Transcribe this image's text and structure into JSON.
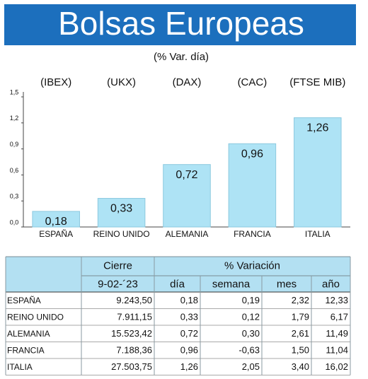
{
  "chart_data": {
    "type": "bar",
    "title": "Bolsas Europeas",
    "subtitle": "(% Var. día)",
    "tickers": [
      "(IBEX)",
      "(UKX)",
      "(DAX)",
      "(CAC)",
      "(FTSE MIB)"
    ],
    "categories": [
      "ESPAÑA",
      "REINO UNIDO",
      "ALEMANIA",
      "FRANCIA",
      "ITALIA"
    ],
    "values": [
      0.18,
      0.33,
      0.72,
      0.96,
      1.26
    ],
    "value_labels": [
      "0,18",
      "0,33",
      "0,72",
      "0,96",
      "1,26"
    ],
    "color": "#aee3f5",
    "ylim": [
      0,
      1.5
    ],
    "yticks": [
      {
        "value": 0,
        "label": "0,0"
      },
      {
        "value": 0.3,
        "label": "0,3"
      },
      {
        "value": 0.6,
        "label": "0,6"
      },
      {
        "value": 0.9,
        "label": "0,9"
      },
      {
        "value": 1.2,
        "label": "1,2"
      },
      {
        "value": 1.5,
        "label": "1,5"
      }
    ],
    "grid": false
  },
  "table": {
    "header": [
      "Cierre",
      "% Variación"
    ],
    "subheader": [
      "9-02-´23",
      "día",
      "semana",
      "mes",
      "año"
    ],
    "rows": [
      [
        "ESPAÑA",
        "9.243,50",
        "0,18",
        "0,19",
        "2,32",
        "12,33"
      ],
      [
        "REINO UNIDO",
        "7.911,15",
        "0,33",
        "0,12",
        "1,79",
        "6,17"
      ],
      [
        "ALEMANIA",
        "15.523,42",
        "0,72",
        "0,30",
        "2,61",
        "11,49"
      ],
      [
        "FRANCIA",
        "7.188,36",
        "0,96",
        "-0,63",
        "1,50",
        "11,04"
      ],
      [
        "ITALIA",
        "27.503,75",
        "1,26",
        "2,05",
        "3,40",
        "16,02"
      ]
    ]
  }
}
